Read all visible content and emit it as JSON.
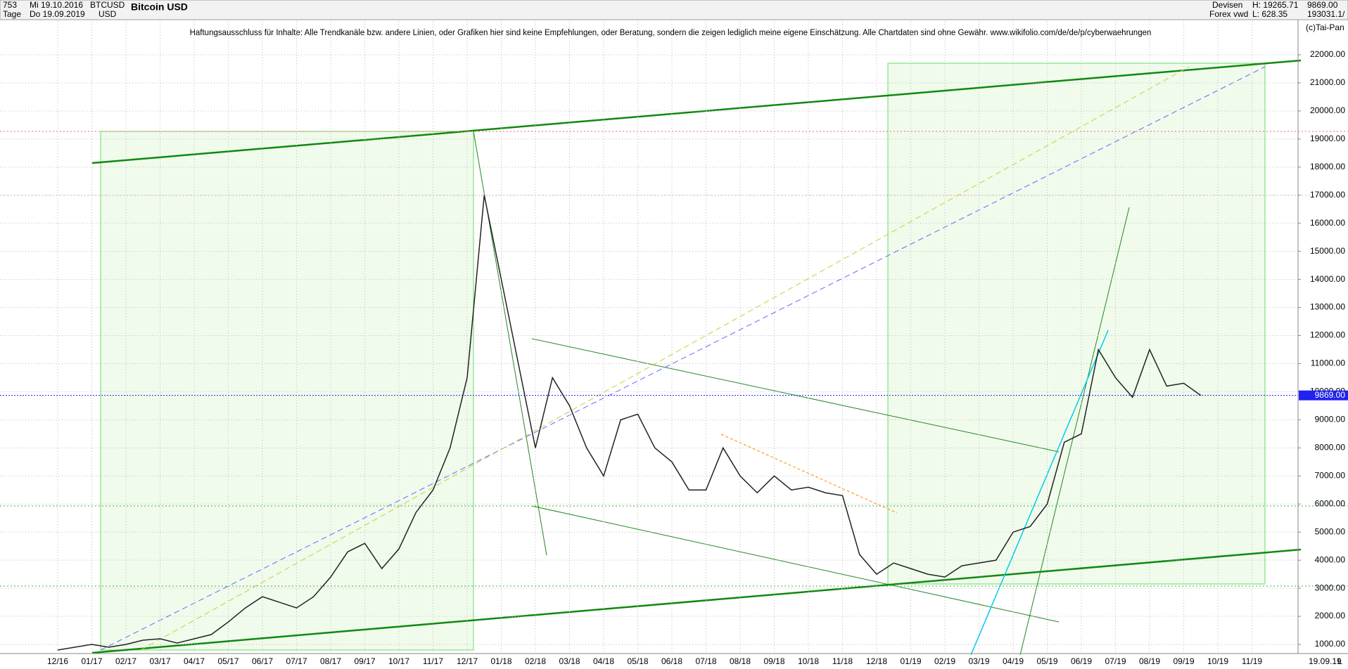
{
  "header": {
    "count": "753",
    "start_date": "Mi 19.10.2016",
    "period": "Tage",
    "end_date": "Do 19.09.2019",
    "symbol": "BTCUSD",
    "currency": "USD",
    "market": "Devisen",
    "source": "Forex vwd",
    "high": "H: 19265.71",
    "low": "L: 628.35",
    "last": "9869.00",
    "volume": "193031.1/",
    "copyright": "(c)Tai-Pan",
    "footer_date": "19.09.19",
    "footer_scale": "L"
  },
  "chart_data": {
    "type": "line",
    "title": "Bitcoin USD",
    "annotation": "Haftungsausschluss für Inhalte: Alle Trendkanäle bzw. andere Linien, oder Grafiken hier sind keine Empfehlungen, oder Beratung, sondern die zeigen lediglich meine eigene Einschätzung. Alle Chartdaten sind ohne Gewähr.  www.wikifolio.com/de/de/p/cyberwaehrungen",
    "categories": [
      "12/16",
      null,
      "01/17",
      null,
      "02/17",
      null,
      "03/17",
      null,
      "04/17",
      null,
      "05/17",
      null,
      "06/17",
      null,
      "07/17",
      null,
      "08/17",
      null,
      "09/17",
      null,
      "10/17",
      null,
      "11/17",
      null,
      "12/17",
      null,
      "01/18",
      null,
      "02/18",
      null,
      "03/18",
      null,
      "04/18",
      null,
      "05/18",
      null,
      "06/18",
      null,
      "07/18",
      null,
      "08/18",
      null,
      "09/18",
      null,
      "10/18",
      null,
      "11/18",
      null,
      "12/18",
      null,
      "01/19",
      null,
      "02/19",
      null,
      "03/19",
      null,
      "04/19",
      null,
      "05/19",
      null,
      "06/19",
      null,
      "07/19",
      null,
      "08/19",
      null,
      "09/19",
      null,
      "10/19",
      null,
      "11/19",
      null
    ],
    "series": [
      {
        "name": "BTCUSD",
        "color": "#222222",
        "values": [
          800,
          900,
          1000,
          900,
          1000,
          1150,
          1200,
          1050,
          1200,
          1350,
          1800,
          2300,
          2700,
          2500,
          2300,
          2700,
          3400,
          4300,
          4600,
          3700,
          4400,
          5700,
          6500,
          8000,
          10500,
          17000,
          14000,
          11000,
          8000,
          10500,
          9500,
          8000,
          7000,
          9000,
          9200,
          8000,
          7500,
          6500,
          6500,
          8000,
          7000,
          6400,
          7000,
          6500,
          6600,
          6400,
          6300,
          4200,
          3500,
          3900,
          3700,
          3500,
          3400,
          3800,
          3900,
          4000,
          5000,
          5200,
          6000,
          8200,
          8500,
          11500,
          10500,
          9800,
          11500,
          10200,
          10300,
          9869,
          null,
          null,
          null,
          null
        ]
      }
    ],
    "last_price": {
      "value": 9869,
      "label": "9869.00"
    },
    "ylim": [
      675,
      23200
    ],
    "yticks": [
      {
        "value": 1000,
        "label": "1000.00"
      },
      {
        "value": 2000,
        "label": "2000.00"
      },
      {
        "value": 3000,
        "label": "3000.00"
      },
      {
        "value": 4000,
        "label": "4000.00"
      },
      {
        "value": 5000,
        "label": "5000.00"
      },
      {
        "value": 6000,
        "label": "6000.00"
      },
      {
        "value": 7000,
        "label": "7000.00"
      },
      {
        "value": 8000,
        "label": "8000.00"
      },
      {
        "value": 9000,
        "label": "9000.00"
      },
      {
        "value": 10000,
        "label": "10000.00"
      },
      {
        "value": 11000,
        "label": "11000.00"
      },
      {
        "value": 12000,
        "label": "12000.00"
      },
      {
        "value": 13000,
        "label": "13000.00"
      },
      {
        "value": 14000,
        "label": "14000.00"
      },
      {
        "value": 15000,
        "label": "15000.00"
      },
      {
        "value": 16000,
        "label": "16000.00"
      },
      {
        "value": 17000,
        "label": "17000.00"
      },
      {
        "value": 18000,
        "label": "18000.00"
      },
      {
        "value": 19000,
        "label": "19000.00"
      },
      {
        "value": 20000,
        "label": "20000.00"
      },
      {
        "value": 21000,
        "label": "21000.00"
      },
      {
        "value": 22000,
        "label": "22000.00"
      }
    ],
    "grid": true
  }
}
